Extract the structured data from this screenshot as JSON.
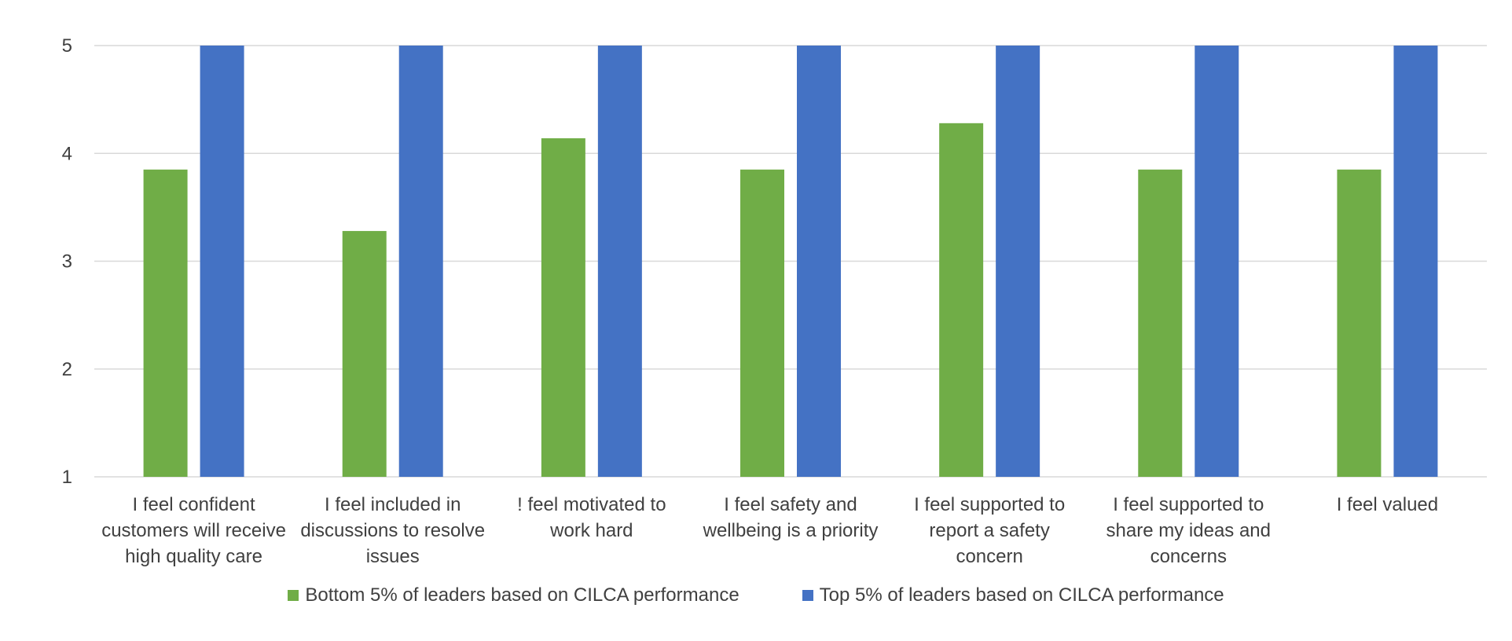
{
  "chart_data": {
    "type": "bar",
    "categories": [
      "I feel confident customers will receive high quality care",
      "I feel included in discussions to resolve issues",
      "! feel motivated to work hard",
      "I feel safety and wellbeing is a priority",
      "I feel supported to report a safety concern",
      "I feel supported to share my ideas and concerns",
      "I feel valued"
    ],
    "category_lines": [
      [
        "I feel confident",
        "customers will receive",
        "high quality care"
      ],
      [
        "I feel included in",
        "discussions to resolve",
        "issues"
      ],
      [
        "! feel motivated to",
        "work hard"
      ],
      [
        "I feel safety and",
        "wellbeing is a priority"
      ],
      [
        "I feel supported to",
        "report a safety",
        "concern"
      ],
      [
        "I feel supported to",
        "share my ideas and",
        "concerns"
      ],
      [
        "I feel valued"
      ]
    ],
    "series": [
      {
        "name": "Bottom 5% of leaders based on CILCA performance",
        "color": "#70AD47",
        "values": [
          3.85,
          3.28,
          4.14,
          3.85,
          4.28,
          3.85,
          3.85
        ]
      },
      {
        "name": "Top 5% of leaders based on CILCA performance",
        "color": "#4472C4",
        "values": [
          5,
          5,
          5,
          5,
          5,
          5,
          5
        ]
      }
    ],
    "yticks": [
      "1",
      "2",
      "3",
      "4",
      "5"
    ],
    "ylim": [
      1,
      5
    ],
    "grid": true,
    "legend_position": "bottom"
  }
}
